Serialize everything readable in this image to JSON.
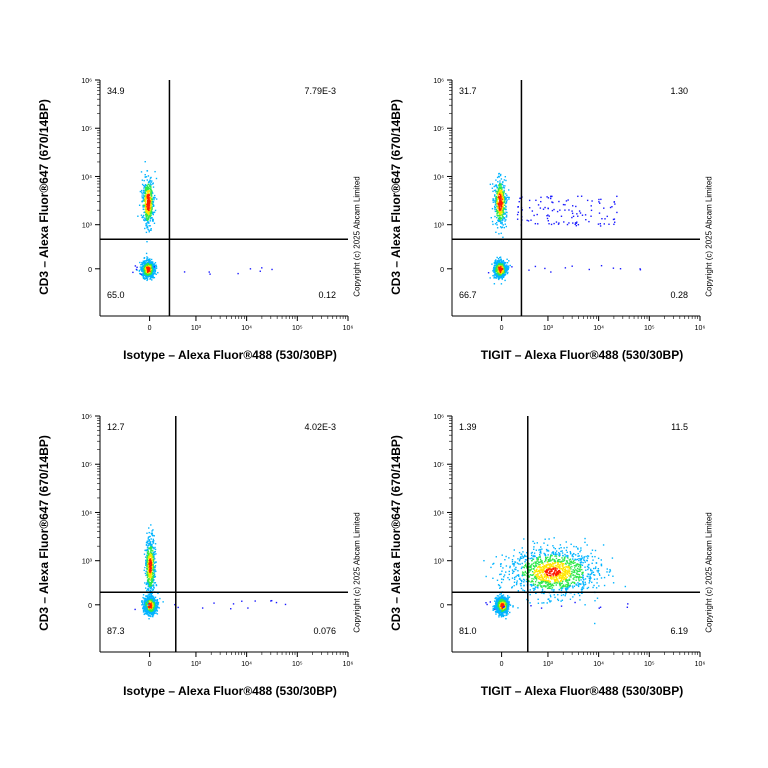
{
  "chart_data": [
    {
      "type": "scatter",
      "title": "",
      "xlabel": "Isotype – Alexa Fluor®488 (530/30BP)",
      "ylabel": "CD3 – Alexa Fluor®647 (670/14BP)",
      "x_scale": "biexponential",
      "y_scale": "biexponential",
      "x_ticks": [
        "0",
        "10³",
        "10⁴",
        "10⁵",
        "10⁶"
      ],
      "y_ticks": [
        "0",
        "10³",
        "10⁴",
        "10⁵",
        "10⁶"
      ],
      "gate": {
        "x": 300,
        "y": 500
      },
      "quadrants": {
        "top_left": "34.9",
        "top_right": "7.79E-3",
        "bottom_left": "65.0",
        "bottom_right": "0.12"
      },
      "populations": [
        {
          "name": "CD3+ cluster",
          "x_center": -30,
          "y_center": 3000,
          "percent": 34.9
        },
        {
          "name": "double-negative cluster",
          "x_center": -30,
          "y_center": 0,
          "percent": 65.0
        }
      ],
      "copyright": "Copyright (c) 2025 Abcam Limited"
    },
    {
      "type": "scatter",
      "title": "",
      "xlabel": "TIGIT – Alexa Fluor®488 (530/30BP)",
      "ylabel": "CD3 – Alexa Fluor®647 (670/14BP)",
      "x_scale": "biexponential",
      "y_scale": "biexponential",
      "x_ticks": [
        "0",
        "10³",
        "10⁴",
        "10⁵",
        "10⁶"
      ],
      "y_ticks": [
        "0",
        "10³",
        "10⁴",
        "10⁵",
        "10⁶"
      ],
      "gate": {
        "x": 300,
        "y": 500
      },
      "quadrants": {
        "top_left": "31.7",
        "top_right": "1.30",
        "bottom_left": "66.7",
        "bottom_right": "0.28"
      },
      "populations": [
        {
          "name": "CD3+ cluster",
          "x_center": -30,
          "y_center": 3000,
          "percent": 31.7
        },
        {
          "name": "double-negative cluster",
          "x_center": -30,
          "y_center": 0,
          "percent": 66.7
        },
        {
          "name": "TIGIT+ CD3+ scatter",
          "x_center": 1500,
          "y_center": 2500,
          "percent": 1.3
        }
      ],
      "copyright": "Copyright (c) 2025 Abcam Limited"
    },
    {
      "type": "scatter",
      "title": "",
      "xlabel": "Isotype – Alexa Fluor®488 (530/30BP)",
      "ylabel": "CD3 – Alexa Fluor®647 (670/14BP)",
      "x_scale": "biexponential",
      "y_scale": "biexponential",
      "x_ticks": [
        "0",
        "10³",
        "10⁴",
        "10⁵",
        "10⁶"
      ],
      "y_ticks": [
        "0",
        "10³",
        "10⁴",
        "10⁵",
        "10⁶"
      ],
      "gate": {
        "x": 400,
        "y": 200
      },
      "quadrants": {
        "top_left": "12.7",
        "top_right": "4.02E-3",
        "bottom_left": "87.3",
        "bottom_right": "0.076"
      },
      "populations": [
        {
          "name": "main cluster",
          "x_center": 0,
          "y_center": 0,
          "percent": 87.3
        },
        {
          "name": "CD3+ streak",
          "x_center": 0,
          "y_center": 800,
          "percent": 12.7
        }
      ],
      "copyright": "Copyright (c) 2025 Abcam Limited"
    },
    {
      "type": "scatter",
      "title": "",
      "xlabel": "TIGIT – Alexa Fluor®488 (530/30BP)",
      "ylabel": "CD3 – Alexa Fluor®647 (670/14BP)",
      "x_scale": "biexponential",
      "y_scale": "biexponential",
      "x_ticks": [
        "0",
        "10³",
        "10⁴",
        "10⁵",
        "10⁶"
      ],
      "y_ticks": [
        "0",
        "10³",
        "10⁴",
        "10⁵",
        "10⁶"
      ],
      "gate": {
        "x": 400,
        "y": 200
      },
      "quadrants": {
        "top_left": "1.39",
        "top_right": "11.5",
        "bottom_left": "81.0",
        "bottom_right": "6.19"
      },
      "populations": [
        {
          "name": "double-negative cluster",
          "x_center": 0,
          "y_center": 0,
          "percent": 81.0
        },
        {
          "name": "TIGIT+ CD3+ cloud",
          "x_center": 1200,
          "y_center": 600,
          "percent": 11.5
        }
      ],
      "copyright": "Copyright (c) 2025 Abcam Limited"
    }
  ]
}
